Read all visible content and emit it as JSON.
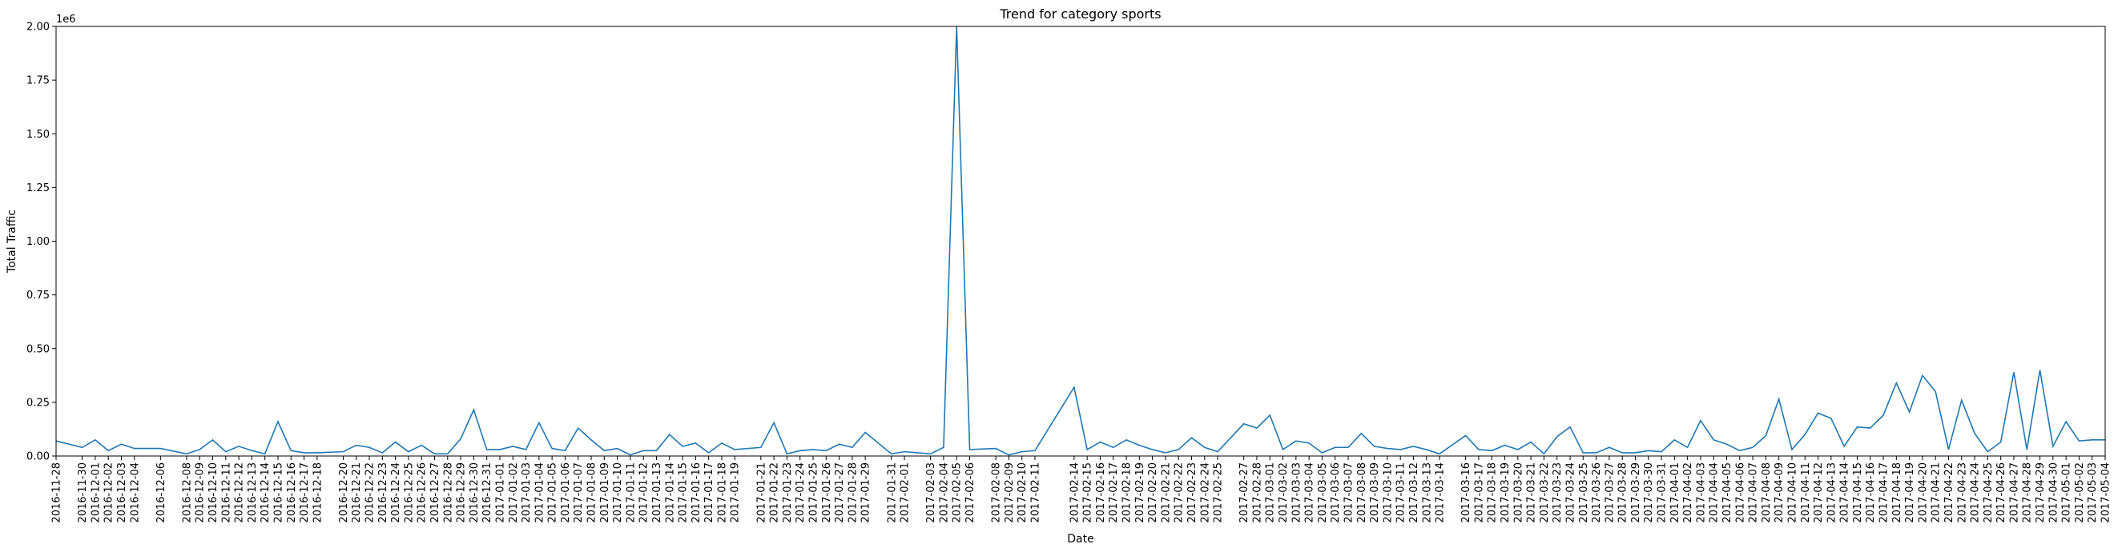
{
  "chart_data": {
    "type": "line",
    "title": "Trend for category sports",
    "xlabel": "Date",
    "ylabel": "Total Traffic",
    "y_offset_label": "1e6",
    "ylim": [
      0,
      2000000
    ],
    "yticks": [
      0,
      250000,
      500000,
      750000,
      1000000,
      1250000,
      1500000,
      1750000,
      2000000
    ],
    "ytick_labels": [
      "0.00",
      "0.25",
      "0.50",
      "0.75",
      "1.00",
      "1.25",
      "1.50",
      "1.75",
      "2.00"
    ],
    "xlim": [
      "2016-11-28",
      "2017-05-04"
    ],
    "grid": false,
    "line_color": "#1f77b4",
    "series": [
      {
        "x": [
          "2016-11-28",
          "2016-11-30",
          "2016-12-01",
          "2016-12-02",
          "2016-12-03",
          "2016-12-04",
          "2016-12-06",
          "2016-12-08",
          "2016-12-09",
          "2016-12-10",
          "2016-12-11",
          "2016-12-12",
          "2016-12-13",
          "2016-12-14",
          "2016-12-15",
          "2016-12-16",
          "2016-12-17",
          "2016-12-18",
          "2016-12-20",
          "2016-12-21",
          "2016-12-22",
          "2016-12-23",
          "2016-12-24",
          "2016-12-25",
          "2016-12-26",
          "2016-12-27",
          "2016-12-28",
          "2016-12-29",
          "2016-12-30",
          "2016-12-31",
          "2017-01-01",
          "2017-01-02",
          "2017-01-03",
          "2017-01-04",
          "2017-01-05",
          "2017-01-06",
          "2017-01-07",
          "2017-01-08",
          "2017-01-09",
          "2017-01-10",
          "2017-01-11",
          "2017-01-12",
          "2017-01-13",
          "2017-01-14",
          "2017-01-15",
          "2017-01-16",
          "2017-01-17",
          "2017-01-18",
          "2017-01-19",
          "2017-01-21",
          "2017-01-22",
          "2017-01-23",
          "2017-01-24",
          "2017-01-25",
          "2017-01-26",
          "2017-01-27",
          "2017-01-28",
          "2017-01-29",
          "2017-01-31",
          "2017-02-01",
          "2017-02-03",
          "2017-02-04",
          "2017-02-05",
          "2017-02-06",
          "2017-02-08",
          "2017-02-09",
          "2017-02-10",
          "2017-02-11",
          "2017-02-14",
          "2017-02-15",
          "2017-02-16",
          "2017-02-17",
          "2017-02-18",
          "2017-02-19",
          "2017-02-20",
          "2017-02-21",
          "2017-02-22",
          "2017-02-23",
          "2017-02-24",
          "2017-02-25",
          "2017-02-27",
          "2017-02-28",
          "2017-03-01",
          "2017-03-02",
          "2017-03-03",
          "2017-03-04",
          "2017-03-05",
          "2017-03-06",
          "2017-03-07",
          "2017-03-08",
          "2017-03-09",
          "2017-03-10",
          "2017-03-11",
          "2017-03-12",
          "2017-03-13",
          "2017-03-14",
          "2017-03-16",
          "2017-03-17",
          "2017-03-18",
          "2017-03-19",
          "2017-03-20",
          "2017-03-21",
          "2017-03-22",
          "2017-03-23",
          "2017-03-24",
          "2017-03-25",
          "2017-03-26",
          "2017-03-27",
          "2017-03-28",
          "2017-03-29",
          "2017-03-30",
          "2017-03-31",
          "2017-04-01",
          "2017-04-02",
          "2017-04-03",
          "2017-04-04",
          "2017-04-05",
          "2017-04-06",
          "2017-04-07",
          "2017-04-08",
          "2017-04-09",
          "2017-04-10",
          "2017-04-11",
          "2017-04-12",
          "2017-04-13",
          "2017-04-14",
          "2017-04-15",
          "2017-04-16",
          "2017-04-17",
          "2017-04-18",
          "2017-04-19",
          "2017-04-20",
          "2017-04-21",
          "2017-04-22",
          "2017-04-23",
          "2017-04-24",
          "2017-04-25",
          "2017-04-26",
          "2017-04-27",
          "2017-04-28",
          "2017-04-29",
          "2017-04-30",
          "2017-05-01",
          "2017-05-02",
          "2017-05-03",
          "2017-05-04"
        ],
        "values": [
          70000,
          40000,
          75000,
          25000,
          55000,
          35000,
          35000,
          10000,
          30000,
          75000,
          20000,
          45000,
          25000,
          10000,
          160000,
          25000,
          15000,
          15000,
          20000,
          50000,
          40000,
          15000,
          65000,
          20000,
          50000,
          10000,
          10000,
          80000,
          215000,
          30000,
          30000,
          45000,
          30000,
          155000,
          35000,
          25000,
          130000,
          75000,
          25000,
          35000,
          5000,
          25000,
          25000,
          100000,
          45000,
          60000,
          15000,
          60000,
          30000,
          40000,
          155000,
          10000,
          25000,
          30000,
          25000,
          55000,
          40000,
          110000,
          10000,
          20000,
          10000,
          40000,
          2000000,
          30000,
          35000,
          5000,
          20000,
          25000,
          320000,
          30000,
          65000,
          40000,
          75000,
          50000,
          30000,
          15000,
          30000,
          85000,
          40000,
          20000,
          150000,
          130000,
          190000,
          30000,
          70000,
          60000,
          15000,
          40000,
          40000,
          105000,
          45000,
          35000,
          30000,
          45000,
          30000,
          10000,
          95000,
          30000,
          25000,
          50000,
          30000,
          65000,
          10000,
          90000,
          135000,
          15000,
          15000,
          40000,
          15000,
          15000,
          25000,
          20000,
          75000,
          40000,
          165000,
          75000,
          55000,
          25000,
          40000,
          95000,
          265000,
          30000,
          100000,
          200000,
          175000,
          45000,
          135000,
          130000,
          190000,
          340000,
          205000,
          375000,
          300000,
          30000,
          260000,
          105000,
          20000,
          65000,
          390000,
          30000,
          400000,
          45000,
          160000,
          70000,
          75000,
          75000
        ]
      }
    ]
  }
}
